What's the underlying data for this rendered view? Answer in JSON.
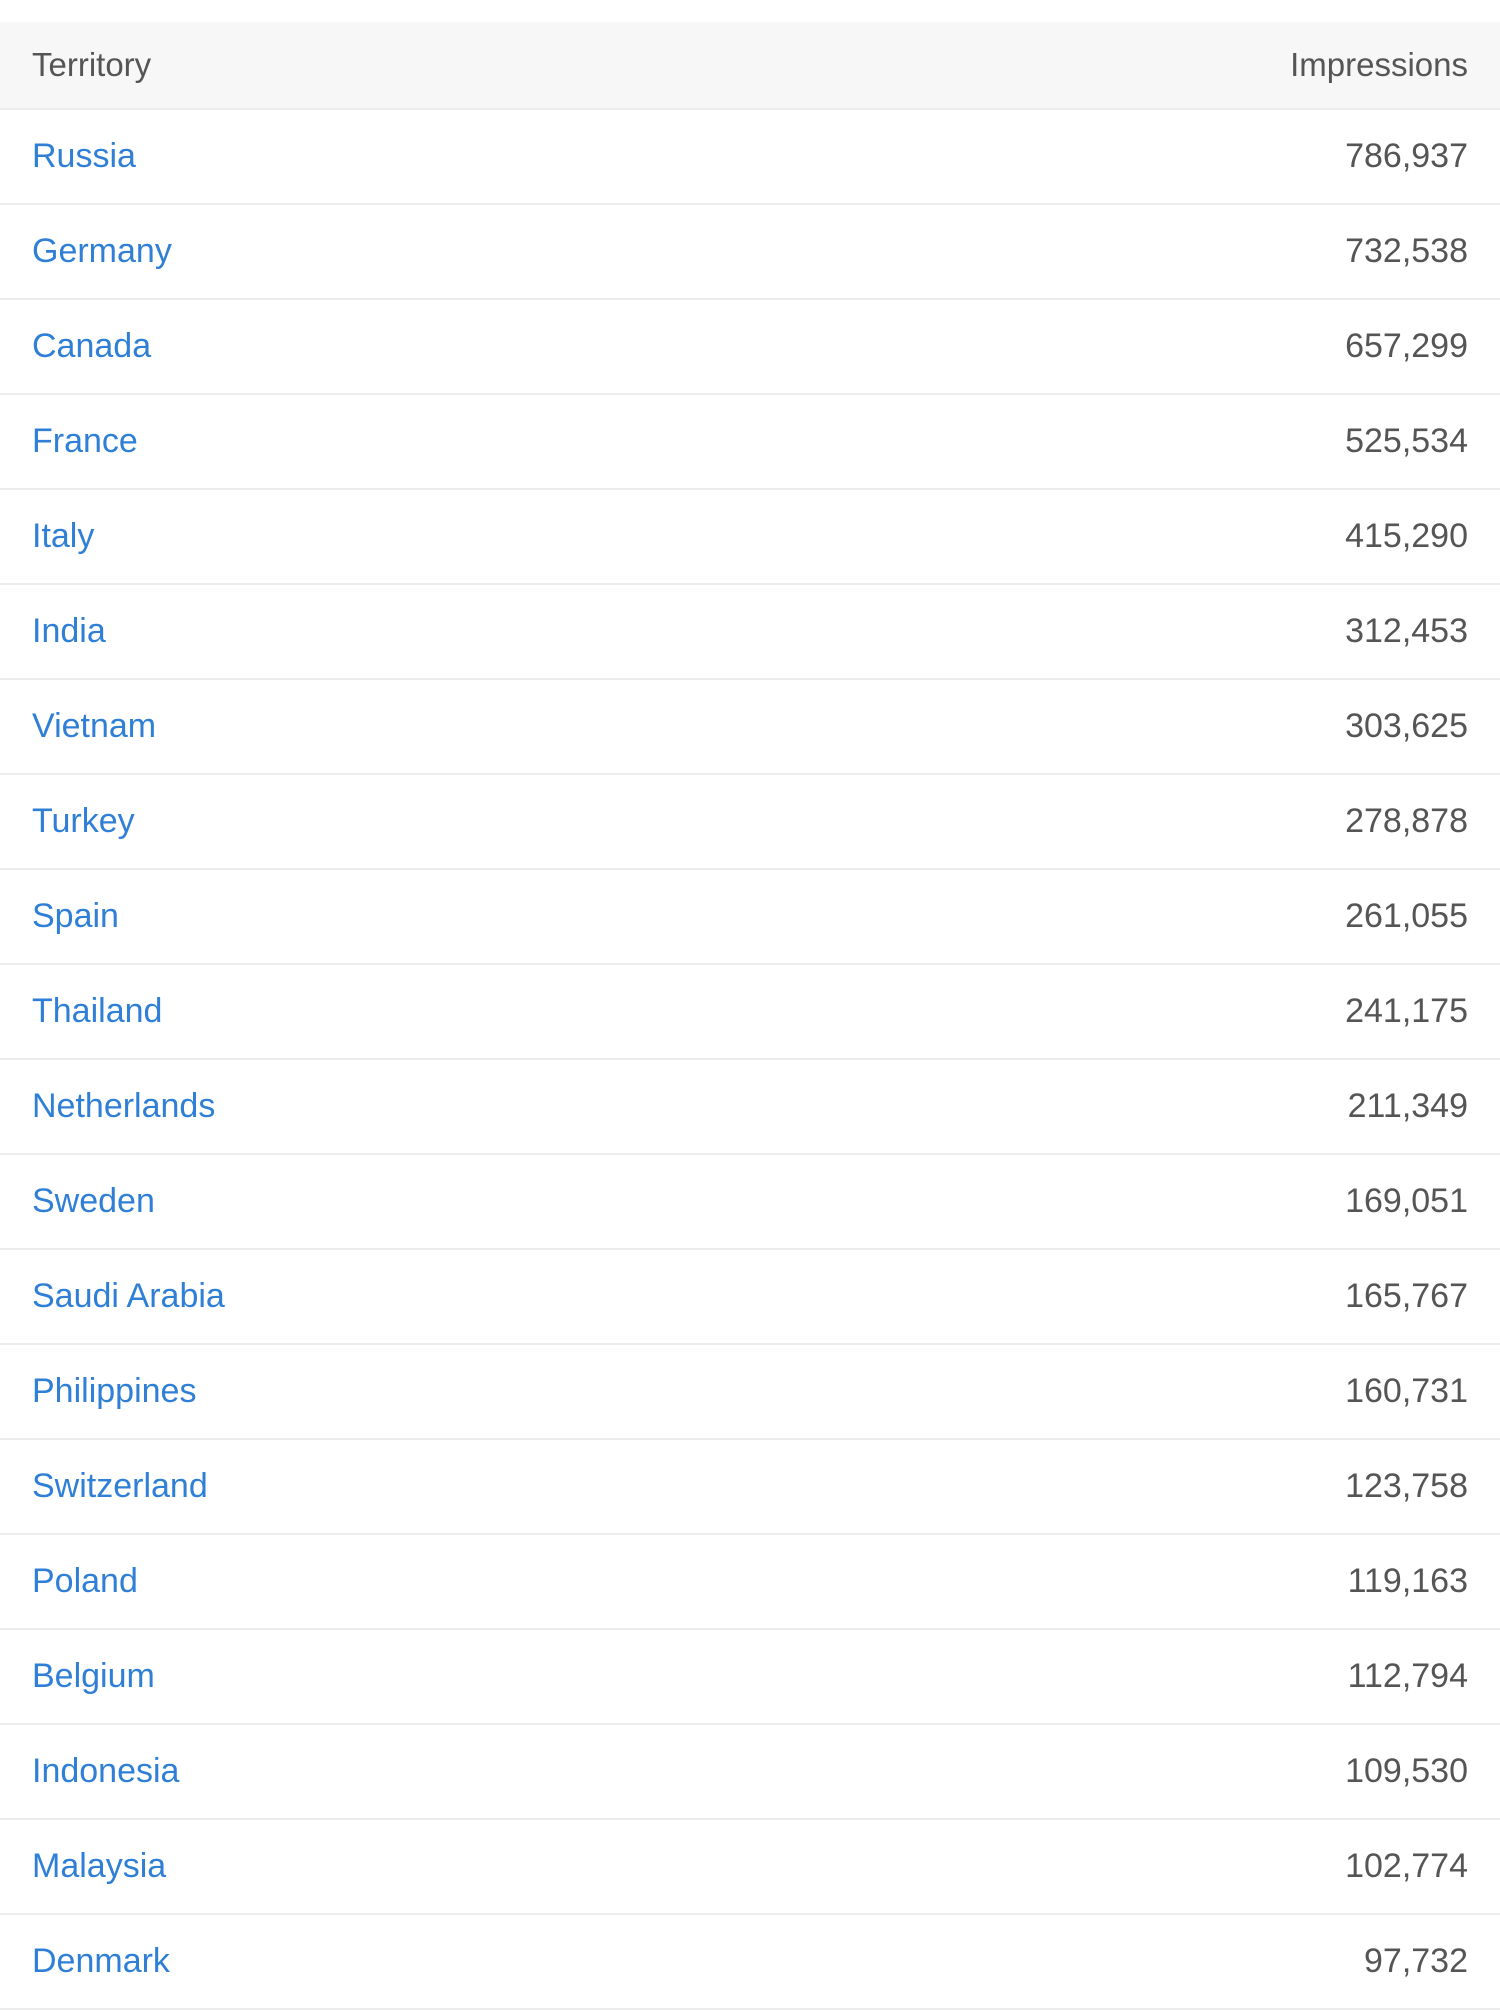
{
  "table": {
    "headers": {
      "territory": "Territory",
      "impressions": "Impressions"
    },
    "rows": [
      {
        "territory": "Russia",
        "impressions": "786,937"
      },
      {
        "territory": "Germany",
        "impressions": "732,538"
      },
      {
        "territory": "Canada",
        "impressions": "657,299"
      },
      {
        "territory": "France",
        "impressions": "525,534"
      },
      {
        "territory": "Italy",
        "impressions": "415,290"
      },
      {
        "territory": "India",
        "impressions": "312,453"
      },
      {
        "territory": "Vietnam",
        "impressions": "303,625"
      },
      {
        "territory": "Turkey",
        "impressions": "278,878"
      },
      {
        "territory": "Spain",
        "impressions": "261,055"
      },
      {
        "territory": "Thailand",
        "impressions": "241,175"
      },
      {
        "territory": "Netherlands",
        "impressions": "211,349"
      },
      {
        "territory": "Sweden",
        "impressions": "169,051"
      },
      {
        "territory": "Saudi Arabia",
        "impressions": "165,767"
      },
      {
        "territory": "Philippines",
        "impressions": "160,731"
      },
      {
        "territory": "Switzerland",
        "impressions": "123,758"
      },
      {
        "territory": "Poland",
        "impressions": "119,163"
      },
      {
        "territory": "Belgium",
        "impressions": "112,794"
      },
      {
        "territory": "Indonesia",
        "impressions": "109,530"
      },
      {
        "territory": "Malaysia",
        "impressions": "102,774"
      },
      {
        "territory": "Denmark",
        "impressions": "97,732"
      }
    ],
    "colors": {
      "link": "#2f7fd6",
      "text": "#555555",
      "header_background": "#f7f7f7",
      "divider": "#ececec"
    }
  }
}
